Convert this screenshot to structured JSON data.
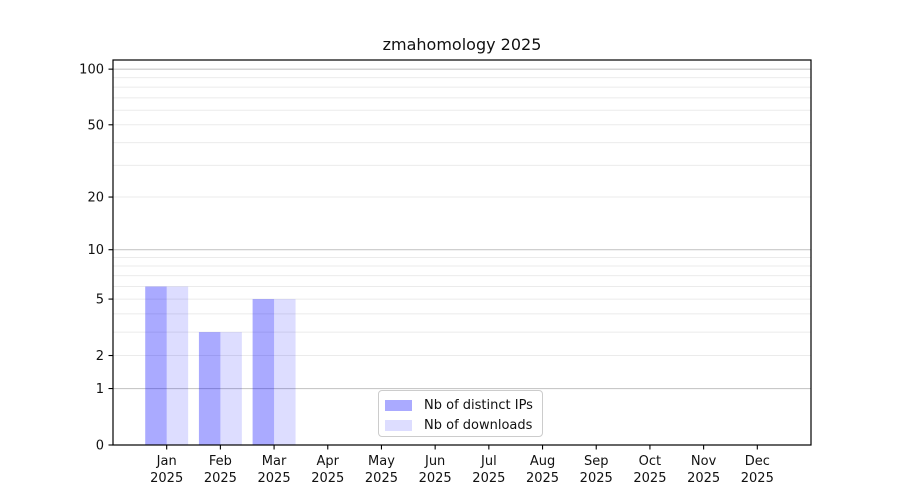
{
  "chart_data": {
    "type": "bar",
    "title": "zmahomology 2025",
    "categories": [
      "Jan 2025",
      "Feb 2025",
      "Mar 2025",
      "Apr 2025",
      "May 2025",
      "Jun 2025",
      "Jul 2025",
      "Aug 2025",
      "Sep 2025",
      "Oct 2025",
      "Nov 2025",
      "Dec 2025"
    ],
    "x_tick_months": [
      "Jan",
      "Feb",
      "Mar",
      "Apr",
      "May",
      "Jun",
      "Jul",
      "Aug",
      "Sep",
      "Oct",
      "Nov",
      "Dec"
    ],
    "x_tick_year": "2025",
    "series": [
      {
        "name": "Nb of distinct IPs",
        "color": "#aaaaff",
        "base_color": "#0000ff",
        "alpha": 0.3333,
        "values": [
          6,
          3,
          5,
          0,
          0,
          0,
          0,
          0,
          0,
          0,
          0,
          0
        ]
      },
      {
        "name": "Nb of downloads",
        "color": "#ddddff",
        "base_color": "#0000ff",
        "alpha": 0.1333,
        "values": [
          6,
          3,
          5,
          0,
          0,
          0,
          0,
          0,
          0,
          0,
          0,
          0
        ]
      }
    ],
    "xlabel": "",
    "ylabel": "",
    "yscale": "log1p",
    "ylim": [
      0,
      112
    ],
    "y_tick_labels": [
      0,
      1,
      2,
      5,
      10,
      20,
      50,
      100
    ],
    "y_major_gridlines": [
      1,
      10,
      100
    ],
    "y_minor_gridlines": [
      2,
      3,
      4,
      5,
      6,
      7,
      8,
      9,
      20,
      30,
      40,
      50,
      60,
      70,
      80,
      90
    ],
    "grid": true,
    "legend": {
      "position": "lower center",
      "entries": [
        "Nb of distinct IPs",
        "Nb of downloads"
      ]
    },
    "colors": {
      "major_grid": "#c8c8c8",
      "minor_grid": "#ebebeb",
      "axis": "#000000",
      "text": "#111111",
      "background": "#ffffff"
    }
  }
}
